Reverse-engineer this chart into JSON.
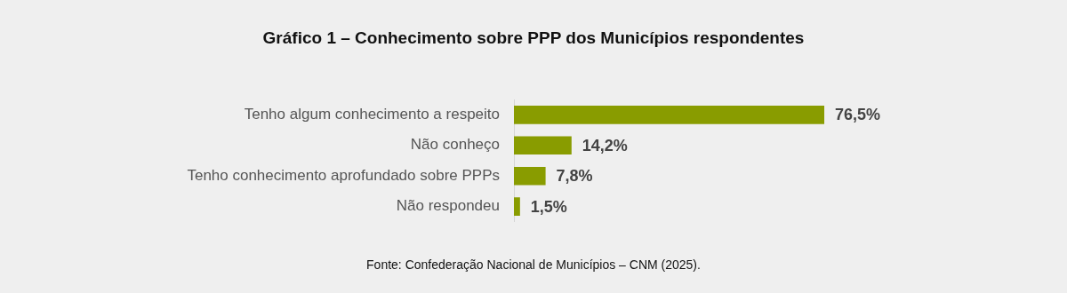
{
  "chart_data": {
    "type": "bar",
    "orientation": "horizontal",
    "title": "Gráfico 1 – Conhecimento sobre PPP dos Municípios respondentes",
    "categories": [
      "Tenho algum conhecimento a respeito",
      "Não conheço",
      "Tenho conhecimento aprofundado sobre PPPs",
      "Não respondeu"
    ],
    "values": [
      76.5,
      14.2,
      7.8,
      1.5
    ],
    "value_labels": [
      "76,5%",
      "14,2%",
      "7,8%",
      "1,5%"
    ],
    "color": "#899c00",
    "legend": false,
    "tick_labels": "y",
    "annotations": [
      "Fonte: Confederação Nacional de Municípios – CNM (2025)."
    ]
  }
}
